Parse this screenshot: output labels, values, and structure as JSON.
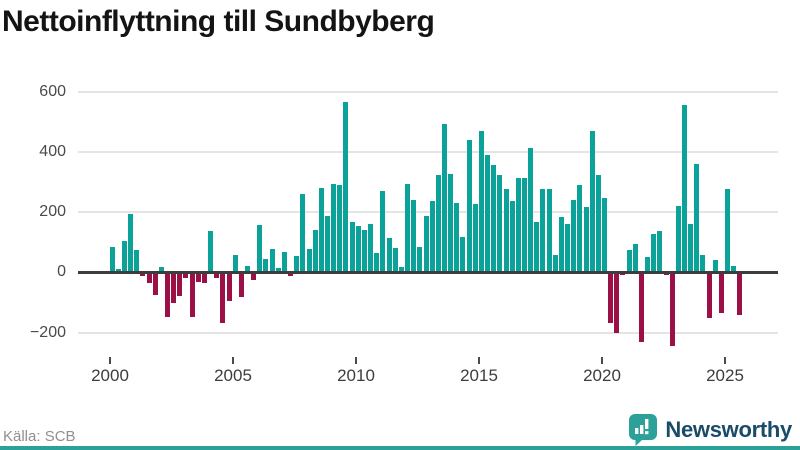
{
  "title": "Nettoinflyttning till Sundbyberg",
  "source": "Källa: SCB",
  "brand": {
    "name": "Newsworthy",
    "icon": "bar-chart-speech-bubble-icon",
    "icon_color": "#2ba19a",
    "text_color": "#1a4c68"
  },
  "colors": {
    "positive_bar": "#0ba29a",
    "negative_bar": "#9c1048",
    "gridline": "#e4e4e4",
    "zero_line": "#3d3d3d",
    "axis_text": "#3d3d3d",
    "title_text": "#141414",
    "source_text": "#8f8f8f",
    "background": "#ffffff",
    "accent_strip": "#2ba19a"
  },
  "chart_data": {
    "type": "bar",
    "title": "Nettoinflyttning till Sundbyberg",
    "frequency": "quarterly",
    "start": "2000 Q1",
    "end": "2025 Q3",
    "grid": true,
    "ylim": [
      -300,
      650
    ],
    "y_ticks": [
      600,
      400,
      200,
      0,
      -200
    ],
    "y_tick_labels": [
      "600",
      "400",
      "200",
      "0",
      "−200"
    ],
    "x_tick_years": [
      2000,
      2005,
      2010,
      2015,
      2020,
      2025
    ],
    "x_tick_labels": [
      "2000",
      "2005",
      "2010",
      "2015",
      "2020",
      "2025"
    ],
    "values": [
      85,
      11,
      104,
      195,
      74,
      -12,
      -36,
      -75,
      19,
      -149,
      -102,
      -80,
      -20,
      -147,
      -31,
      -34,
      137,
      -18,
      -169,
      -95,
      59,
      -82,
      21,
      -26,
      157,
      45,
      78,
      14,
      67,
      -11,
      53,
      260,
      78,
      141,
      281,
      186,
      293,
      290,
      565,
      168,
      155,
      140,
      160,
      63,
      270,
      115,
      80,
      19,
      295,
      240,
      85,
      187,
      236,
      325,
      493,
      328,
      231,
      118,
      441,
      227,
      470,
      389,
      358,
      323,
      278,
      238,
      314,
      314,
      413,
      168,
      278,
      278,
      57,
      185,
      162,
      242,
      292,
      218,
      470,
      325,
      249,
      -169,
      -202,
      -9,
      74,
      96,
      -230,
      52,
      129,
      137,
      -9,
      -246,
      221,
      557,
      162,
      359,
      57,
      -152,
      40,
      -136,
      276,
      22,
      -141
    ]
  }
}
